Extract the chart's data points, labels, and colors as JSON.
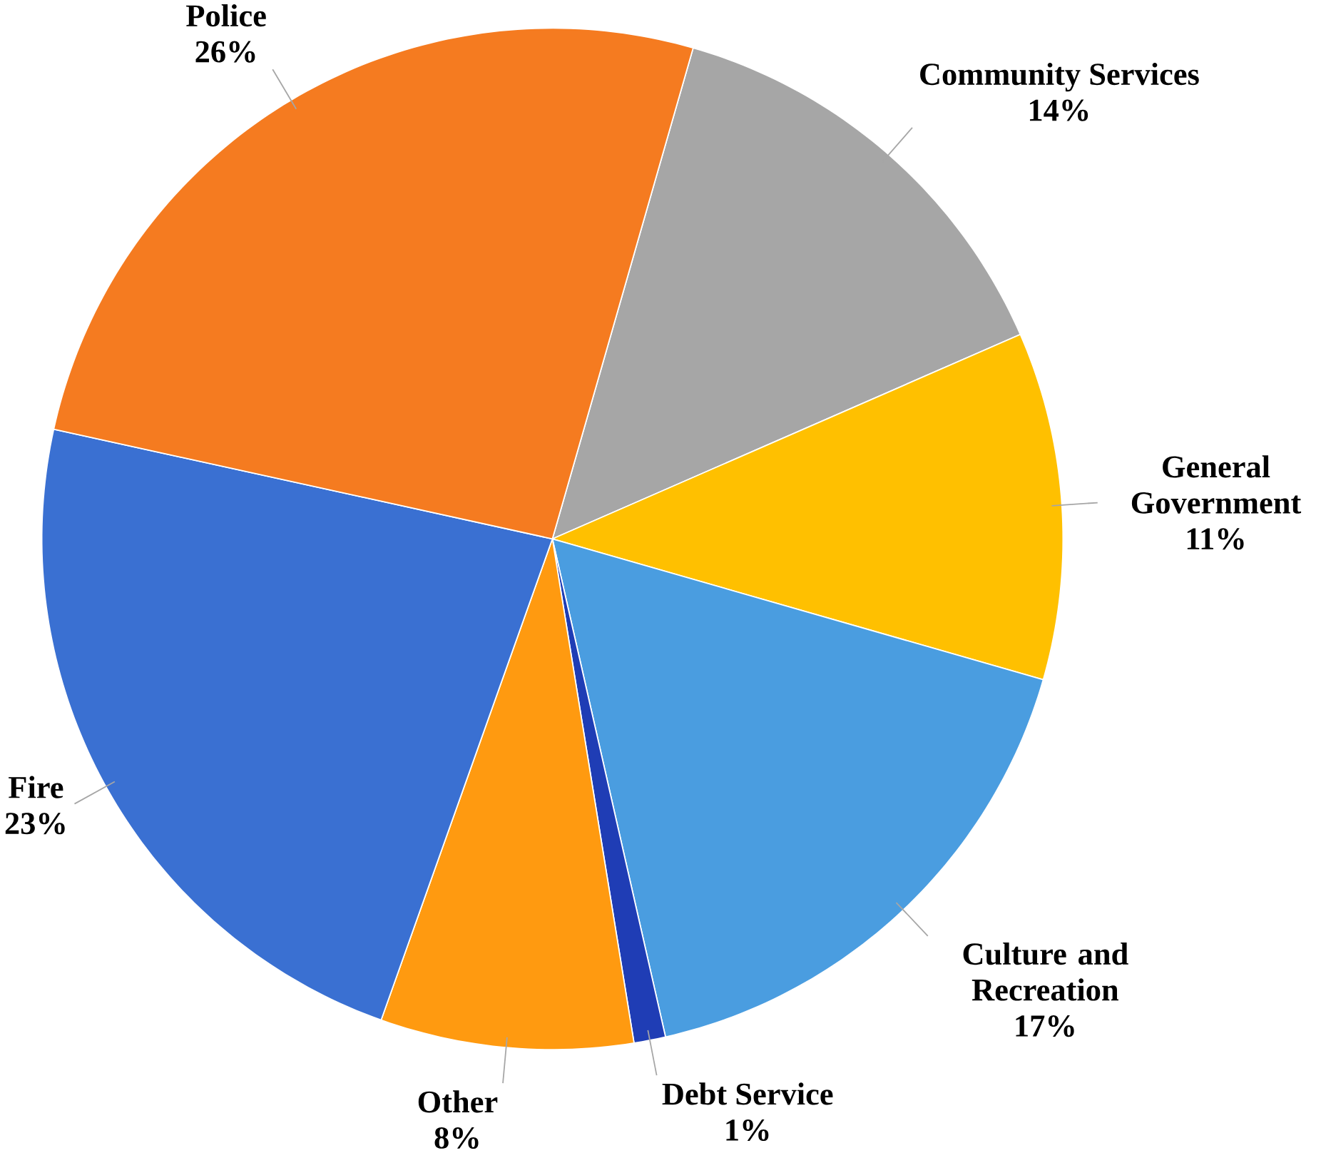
{
  "chart_data": {
    "type": "pie",
    "categories": [
      "Community Services",
      "General Government",
      "Culture and Recreation",
      "Debt Service",
      "Other",
      "Fire",
      "Police"
    ],
    "values": [
      14,
      11,
      17,
      1,
      8,
      23,
      26
    ],
    "colors": [
      "#a6a6a6",
      "#ffc000",
      "#4a9de0",
      "#1f3db5",
      "#ff9a10",
      "#3a70d2",
      "#f57b20"
    ],
    "value_labels": [
      "14%",
      "11%",
      "17%",
      "1%",
      "8%",
      "23%",
      "26%"
    ]
  }
}
